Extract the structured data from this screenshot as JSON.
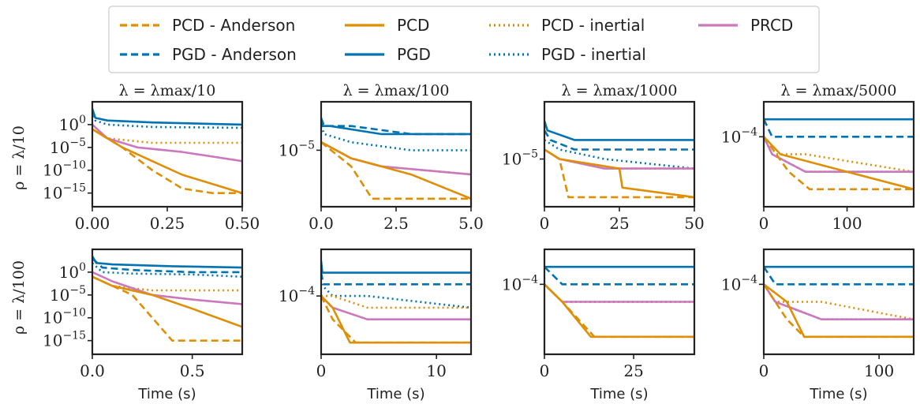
{
  "legend": {
    "entries": [
      {
        "label": "PCD - Anderson",
        "color": "#de8f05",
        "dash": "dashed"
      },
      {
        "label": "PCD",
        "color": "#de8f05",
        "dash": "solid"
      },
      {
        "label": "PCD - inertial",
        "color": "#de8f05",
        "dash": "dotted"
      },
      {
        "label": "PRCD",
        "color": "#cc78bc",
        "dash": "solid"
      },
      {
        "label": "PGD - Anderson",
        "color": "#0173b2",
        "dash": "dashed"
      },
      {
        "label": "PGD",
        "color": "#0173b2",
        "dash": "solid"
      },
      {
        "label": "PGD - inertial",
        "color": "#0173b2",
        "dash": "dotted"
      }
    ]
  },
  "colors": {
    "pcd": "#de8f05",
    "pgd": "#0173b2",
    "prcd": "#cc78bc",
    "axis": "#222222"
  },
  "row_labels": [
    "ρ = λ/10",
    "ρ = λ/100"
  ],
  "chart_data": [
    {
      "type": "line",
      "title": "λ = λmax/10",
      "row": 0,
      "col": 0,
      "xlim": [
        0,
        0.5
      ],
      "ylog": true,
      "ylim": [
        1e-18,
        100000.0
      ],
      "xticks": [
        0,
        0.25,
        0.5
      ],
      "xticklabels": [
        "0.00",
        "0.25",
        "0.50"
      ],
      "yticks": [
        1,
        1e-05,
        1e-10,
        1e-15
      ],
      "yticklabels": [
        "10^0",
        "10^-5",
        "10^-10",
        "10^-15"
      ],
      "xlabel": "",
      "ylabel": "ρ = λ/10",
      "series": [
        {
          "name": "PGD",
          "x": [
            0,
            0.01,
            0.05,
            0.2,
            0.5
          ],
          "y": [
            3000.0,
            30,
            8,
            3,
            1
          ]
        },
        {
          "name": "PGD - inertial",
          "x": [
            0,
            0.01,
            0.05,
            0.2,
            0.5
          ],
          "y": [
            1000.0,
            8,
            1,
            0.3,
            0.2
          ]
        },
        {
          "name": "PCD - inertial",
          "x": [
            0,
            0.05,
            0.2,
            0.5
          ],
          "y": [
            0.1,
            0.001,
            0.0001,
            0.0001
          ]
        },
        {
          "name": "PRCD",
          "x": [
            0,
            0.05,
            0.15,
            0.3,
            0.5
          ],
          "y": [
            1,
            0.001,
            1e-05,
            1e-06,
            1e-08
          ]
        },
        {
          "name": "PCD",
          "x": [
            0,
            0.05,
            0.1,
            0.2,
            0.3,
            0.4,
            0.5
          ],
          "y": [
            0.1,
            0.001,
            1e-05,
            1e-08,
            1e-11,
            1e-13,
            1e-15
          ]
        },
        {
          "name": "PCD - Anderson",
          "x": [
            0,
            0.1,
            0.2,
            0.3,
            0.4,
            0.5
          ],
          "y": [
            0.1,
            1e-05,
            1e-10,
            1e-14,
            1e-15,
            1e-15
          ]
        }
      ]
    },
    {
      "type": "line",
      "title": "λ = λmax/100",
      "row": 0,
      "col": 1,
      "xlim": [
        0,
        5
      ],
      "ylog": true,
      "ylim": [
        1e-12,
        10
      ],
      "xticks": [
        0,
        2.5,
        5
      ],
      "xticklabels": [
        "0.0",
        "2.5",
        "5.0"
      ],
      "yticks": [
        1e-05
      ],
      "yticklabels": [
        "10^-5"
      ],
      "xlabel": "",
      "ylabel": "",
      "series": [
        {
          "name": "PGD",
          "x": [
            0,
            0.05,
            0.3,
            2,
            5
          ],
          "y": [
            0.1,
            0.01,
            0.01,
            0.001,
            0.001
          ]
        },
        {
          "name": "PGD - Anderson",
          "x": [
            0,
            0.1,
            1,
            3,
            5
          ],
          "y": [
            0.1,
            0.01,
            0.01,
            0.001,
            0.001
          ]
        },
        {
          "name": "PGD - inertial",
          "x": [
            0,
            0.1,
            1,
            3,
            5
          ],
          "y": [
            0.01,
            0.001,
            0.0001,
            1e-05,
            1e-05
          ]
        },
        {
          "name": "PCD - inertial",
          "x": [
            0,
            0.5,
            1,
            2,
            5
          ],
          "y": [
            0.0001,
            1e-05,
            1e-06,
            1e-07,
            1e-08
          ]
        },
        {
          "name": "PRCD",
          "x": [
            0,
            0.5,
            1,
            2,
            5
          ],
          "y": [
            0.0001,
            1e-05,
            1e-06,
            1e-07,
            1e-08
          ]
        },
        {
          "name": "PCD",
          "x": [
            0,
            1,
            2,
            3,
            5
          ],
          "y": [
            0.0001,
            1e-06,
            1e-07,
            1e-08,
            1e-11
          ]
        },
        {
          "name": "PCD - Anderson",
          "x": [
            0,
            1,
            1.7,
            5
          ],
          "y": [
            0.0001,
            1e-07,
            1e-11,
            1e-11
          ]
        }
      ]
    },
    {
      "type": "line",
      "title": "λ = λmax/1000",
      "row": 0,
      "col": 2,
      "xlim": [
        0,
        50
      ],
      "ylog": true,
      "ylim": [
        1e-10,
        10
      ],
      "xticks": [
        0,
        25,
        50
      ],
      "xticklabels": [
        "0",
        "25",
        "50"
      ],
      "yticks": [
        1e-05
      ],
      "yticklabels": [
        "10^-5"
      ],
      "xlabel": "",
      "ylabel": "",
      "series": [
        {
          "name": "PGD",
          "x": [
            0,
            1,
            10,
            30,
            50
          ],
          "y": [
            0.1,
            0.01,
            0.001,
            0.001,
            0.001
          ]
        },
        {
          "name": "PGD - Anderson",
          "x": [
            0,
            2,
            10,
            30,
            50
          ],
          "y": [
            0.01,
            0.001,
            0.0001,
            0.0001,
            0.0001
          ]
        },
        {
          "name": "PGD - inertial",
          "x": [
            0,
            5,
            20,
            50
          ],
          "y": [
            0.001,
            0.0001,
            1e-05,
            1e-06
          ]
        },
        {
          "name": "PCD - inertial",
          "x": [
            0,
            5,
            20,
            50
          ],
          "y": [
            0.0001,
            1e-05,
            1e-06,
            1e-06
          ]
        },
        {
          "name": "PRCD",
          "x": [
            0,
            5,
            20,
            50
          ],
          "y": [
            0.0001,
            1e-05,
            1e-06,
            1e-06
          ]
        },
        {
          "name": "PCD",
          "x": [
            0,
            5,
            25,
            26,
            50
          ],
          "y": [
            0.0001,
            1e-05,
            1e-06,
            1e-08,
            1e-09
          ]
        },
        {
          "name": "PCD - Anderson",
          "x": [
            0,
            5,
            8,
            50
          ],
          "y": [
            0.0001,
            1e-05,
            1e-09,
            1e-09
          ]
        }
      ]
    },
    {
      "type": "line",
      "title": "λ = λmax/5000",
      "row": 0,
      "col": 3,
      "xlim": [
        0,
        180
      ],
      "ylog": true,
      "ylim": [
        1e-08,
        0.01
      ],
      "xticks": [
        0,
        100
      ],
      "xticklabels": [
        "0",
        "100"
      ],
      "yticks": [
        0.0001
      ],
      "yticklabels": [
        "10^-4"
      ],
      "xlabel": "",
      "ylabel": "",
      "series": [
        {
          "name": "PGD",
          "x": [
            0,
            10,
            100,
            180
          ],
          "y": [
            0.001,
            0.001,
            0.001,
            0.001
          ]
        },
        {
          "name": "PGD - Anderson",
          "x": [
            0,
            10,
            100,
            180
          ],
          "y": [
            0.001,
            0.0001,
            0.0001,
            0.0001
          ]
        },
        {
          "name": "PGD - inertial",
          "x": [
            0,
            10,
            50,
            180
          ],
          "y": [
            0.0001,
            1e-05,
            1e-06,
            1e-06
          ]
        },
        {
          "name": "PCD - inertial",
          "x": [
            0,
            10,
            50,
            180
          ],
          "y": [
            0.0001,
            1e-05,
            1e-05,
            1e-06
          ]
        },
        {
          "name": "PRCD",
          "x": [
            0,
            10,
            50,
            180
          ],
          "y": [
            0.0001,
            1e-05,
            1e-06,
            1e-06
          ]
        },
        {
          "name": "PCD",
          "x": [
            0,
            20,
            100,
            180
          ],
          "y": [
            0.0001,
            1e-05,
            1e-06,
            1e-07
          ]
        },
        {
          "name": "PCD - Anderson",
          "x": [
            0,
            30,
            55,
            180
          ],
          "y": [
            0.0001,
            1e-06,
            1e-07,
            1e-07
          ]
        }
      ]
    },
    {
      "type": "line",
      "title": "",
      "row": 1,
      "col": 0,
      "xlim": [
        0,
        0.75
      ],
      "ylog": true,
      "ylim": [
        1e-18,
        100000.0
      ],
      "xticks": [
        0,
        0.5
      ],
      "xticklabels": [
        "0.0",
        "0.5"
      ],
      "yticks": [
        1,
        1e-05,
        1e-10,
        1e-15
      ],
      "yticklabels": [
        "10^0",
        "10^-5",
        "10^-10",
        "10^-15"
      ],
      "xlabel": "Time (s)",
      "ylabel": "ρ = λ/100",
      "series": [
        {
          "name": "PGD",
          "x": [
            0,
            0.02,
            0.1,
            0.4,
            0.75
          ],
          "y": [
            3000.0,
            100,
            50,
            20,
            10
          ]
        },
        {
          "name": "PGD - Anderson",
          "x": [
            0,
            0.05,
            0.2,
            0.5,
            0.75
          ],
          "y": [
            1000.0,
            10,
            3,
            1,
            1
          ]
        },
        {
          "name": "PGD - inertial",
          "x": [
            0,
            0.05,
            0.2,
            0.5,
            0.75
          ],
          "y": [
            100.0,
            1,
            0.5,
            0.3,
            0.1
          ]
        },
        {
          "name": "PCD - inertial",
          "x": [
            0,
            0.1,
            0.3,
            0.75
          ],
          "y": [
            0.1,
            0.001,
            0.0001,
            0.0001
          ]
        },
        {
          "name": "PRCD",
          "x": [
            0,
            0.1,
            0.3,
            0.5,
            0.75
          ],
          "y": [
            1,
            0.01,
            1e-05,
            1e-06,
            1e-07
          ]
        },
        {
          "name": "PCD",
          "x": [
            0,
            0.1,
            0.3,
            0.5,
            0.75
          ],
          "y": [
            0.1,
            0.001,
            1e-05,
            1e-08,
            1e-12
          ]
        },
        {
          "name": "PCD - Anderson",
          "x": [
            0,
            0.2,
            0.3,
            0.4,
            0.75
          ],
          "y": [
            0.1,
            1e-05,
            1e-10,
            1e-15,
            1e-15
          ]
        }
      ]
    },
    {
      "type": "line",
      "title": "",
      "row": 1,
      "col": 1,
      "xlim": [
        0,
        13
      ],
      "ylog": true,
      "ylim": [
        1e-09,
        1
      ],
      "xticks": [
        0,
        10
      ],
      "xticklabels": [
        "0",
        "10"
      ],
      "yticks": [
        0.0001
      ],
      "yticklabels": [
        "10^-4"
      ],
      "xlabel": "Time (s)",
      "ylabel": "",
      "series": [
        {
          "name": "PGD",
          "x": [
            0,
            0.1,
            1,
            5,
            13
          ],
          "y": [
            0.1,
            0.01,
            0.01,
            0.01,
            0.01
          ]
        },
        {
          "name": "PGD - Anderson",
          "x": [
            0,
            0.2,
            2,
            6,
            13
          ],
          "y": [
            0.01,
            0.001,
            0.001,
            0.001,
            0.001
          ]
        },
        {
          "name": "PGD - inertial",
          "x": [
            0,
            1,
            4,
            13
          ],
          "y": [
            0.001,
            0.0001,
            0.0001,
            1e-05
          ]
        },
        {
          "name": "PCD - inertial",
          "x": [
            0,
            1,
            4,
            13
          ],
          "y": [
            0.0001,
            0.0001,
            1e-05,
            1e-05
          ]
        },
        {
          "name": "PRCD",
          "x": [
            0,
            1,
            4,
            13
          ],
          "y": [
            0.0001,
            1e-05,
            1e-06,
            1e-06
          ]
        },
        {
          "name": "PCD",
          "x": [
            0,
            1,
            2.5,
            13
          ],
          "y": [
            0.0001,
            1e-05,
            1e-08,
            1e-08
          ]
        },
        {
          "name": "PCD - Anderson",
          "x": [
            0,
            1,
            3,
            13
          ],
          "y": [
            0.0001,
            1e-06,
            1e-08,
            1e-08
          ]
        }
      ]
    },
    {
      "type": "line",
      "title": "",
      "row": 1,
      "col": 2,
      "xlim": [
        0,
        42
      ],
      "ylog": true,
      "ylim": [
        1e-08,
        0.01
      ],
      "xticks": [
        0,
        25
      ],
      "xticklabels": [
        "0",
        "25"
      ],
      "yticks": [
        0.0001
      ],
      "yticklabels": [
        "10^-4"
      ],
      "xlabel": "Time (s)",
      "ylabel": "",
      "series": [
        {
          "name": "PGD",
          "x": [
            0,
            5,
            20,
            42
          ],
          "y": [
            0.001,
            0.001,
            0.001,
            0.001
          ]
        },
        {
          "name": "PGD - Anderson",
          "x": [
            0,
            5,
            20,
            42
          ],
          "y": [
            0.001,
            0.0001,
            0.0001,
            0.0001
          ]
        },
        {
          "name": "PGD - inertial",
          "x": [
            0,
            5,
            20,
            42
          ],
          "y": [
            0.0001,
            1e-05,
            1e-05,
            1e-05
          ]
        },
        {
          "name": "PCD - inertial",
          "x": [
            0,
            5,
            20,
            42
          ],
          "y": [
            0.0001,
            1e-05,
            1e-05,
            1e-05
          ]
        },
        {
          "name": "PRCD",
          "x": [
            0,
            5,
            20,
            42
          ],
          "y": [
            0.0001,
            1e-05,
            1e-05,
            1e-05
          ]
        },
        {
          "name": "PCD",
          "x": [
            0,
            5,
            13,
            42
          ],
          "y": [
            0.0001,
            1e-05,
            1e-07,
            1e-07
          ]
        },
        {
          "name": "PCD - Anderson",
          "x": [
            0,
            5,
            14,
            42
          ],
          "y": [
            0.0001,
            1e-05,
            1e-07,
            1e-07
          ]
        }
      ]
    },
    {
      "type": "line",
      "title": "",
      "row": 1,
      "col": 3,
      "xlim": [
        0,
        130
      ],
      "ylog": true,
      "ylim": [
        1e-08,
        0.01
      ],
      "xticks": [
        0,
        100
      ],
      "xticklabels": [
        "0",
        "100"
      ],
      "yticks": [
        0.0001
      ],
      "yticklabels": [
        "10^-4"
      ],
      "xlabel": "Time (s)",
      "ylabel": "",
      "series": [
        {
          "name": "PGD",
          "x": [
            0,
            10,
            50,
            130
          ],
          "y": [
            0.001,
            0.001,
            0.001,
            0.001
          ]
        },
        {
          "name": "PGD - Anderson",
          "x": [
            0,
            10,
            50,
            130
          ],
          "y": [
            0.001,
            0.0001,
            0.0001,
            0.0001
          ]
        },
        {
          "name": "PGD - inertial",
          "x": [
            0,
            10,
            50,
            130
          ],
          "y": [
            0.0001,
            1e-05,
            1e-06,
            1e-06
          ]
        },
        {
          "name": "PCD - inertial",
          "x": [
            0,
            10,
            50,
            130
          ],
          "y": [
            0.0001,
            1e-05,
            1e-05,
            1e-06
          ]
        },
        {
          "name": "PRCD",
          "x": [
            0,
            10,
            50,
            130
          ],
          "y": [
            0.0001,
            1e-05,
            1e-06,
            1e-06
          ]
        },
        {
          "name": "PCD",
          "x": [
            0,
            20,
            35,
            130
          ],
          "y": [
            0.0001,
            1e-05,
            1e-07,
            1e-07
          ]
        },
        {
          "name": "PCD - Anderson",
          "x": [
            0,
            20,
            35,
            130
          ],
          "y": [
            0.0001,
            1e-06,
            1e-07,
            1e-07
          ]
        }
      ]
    }
  ]
}
